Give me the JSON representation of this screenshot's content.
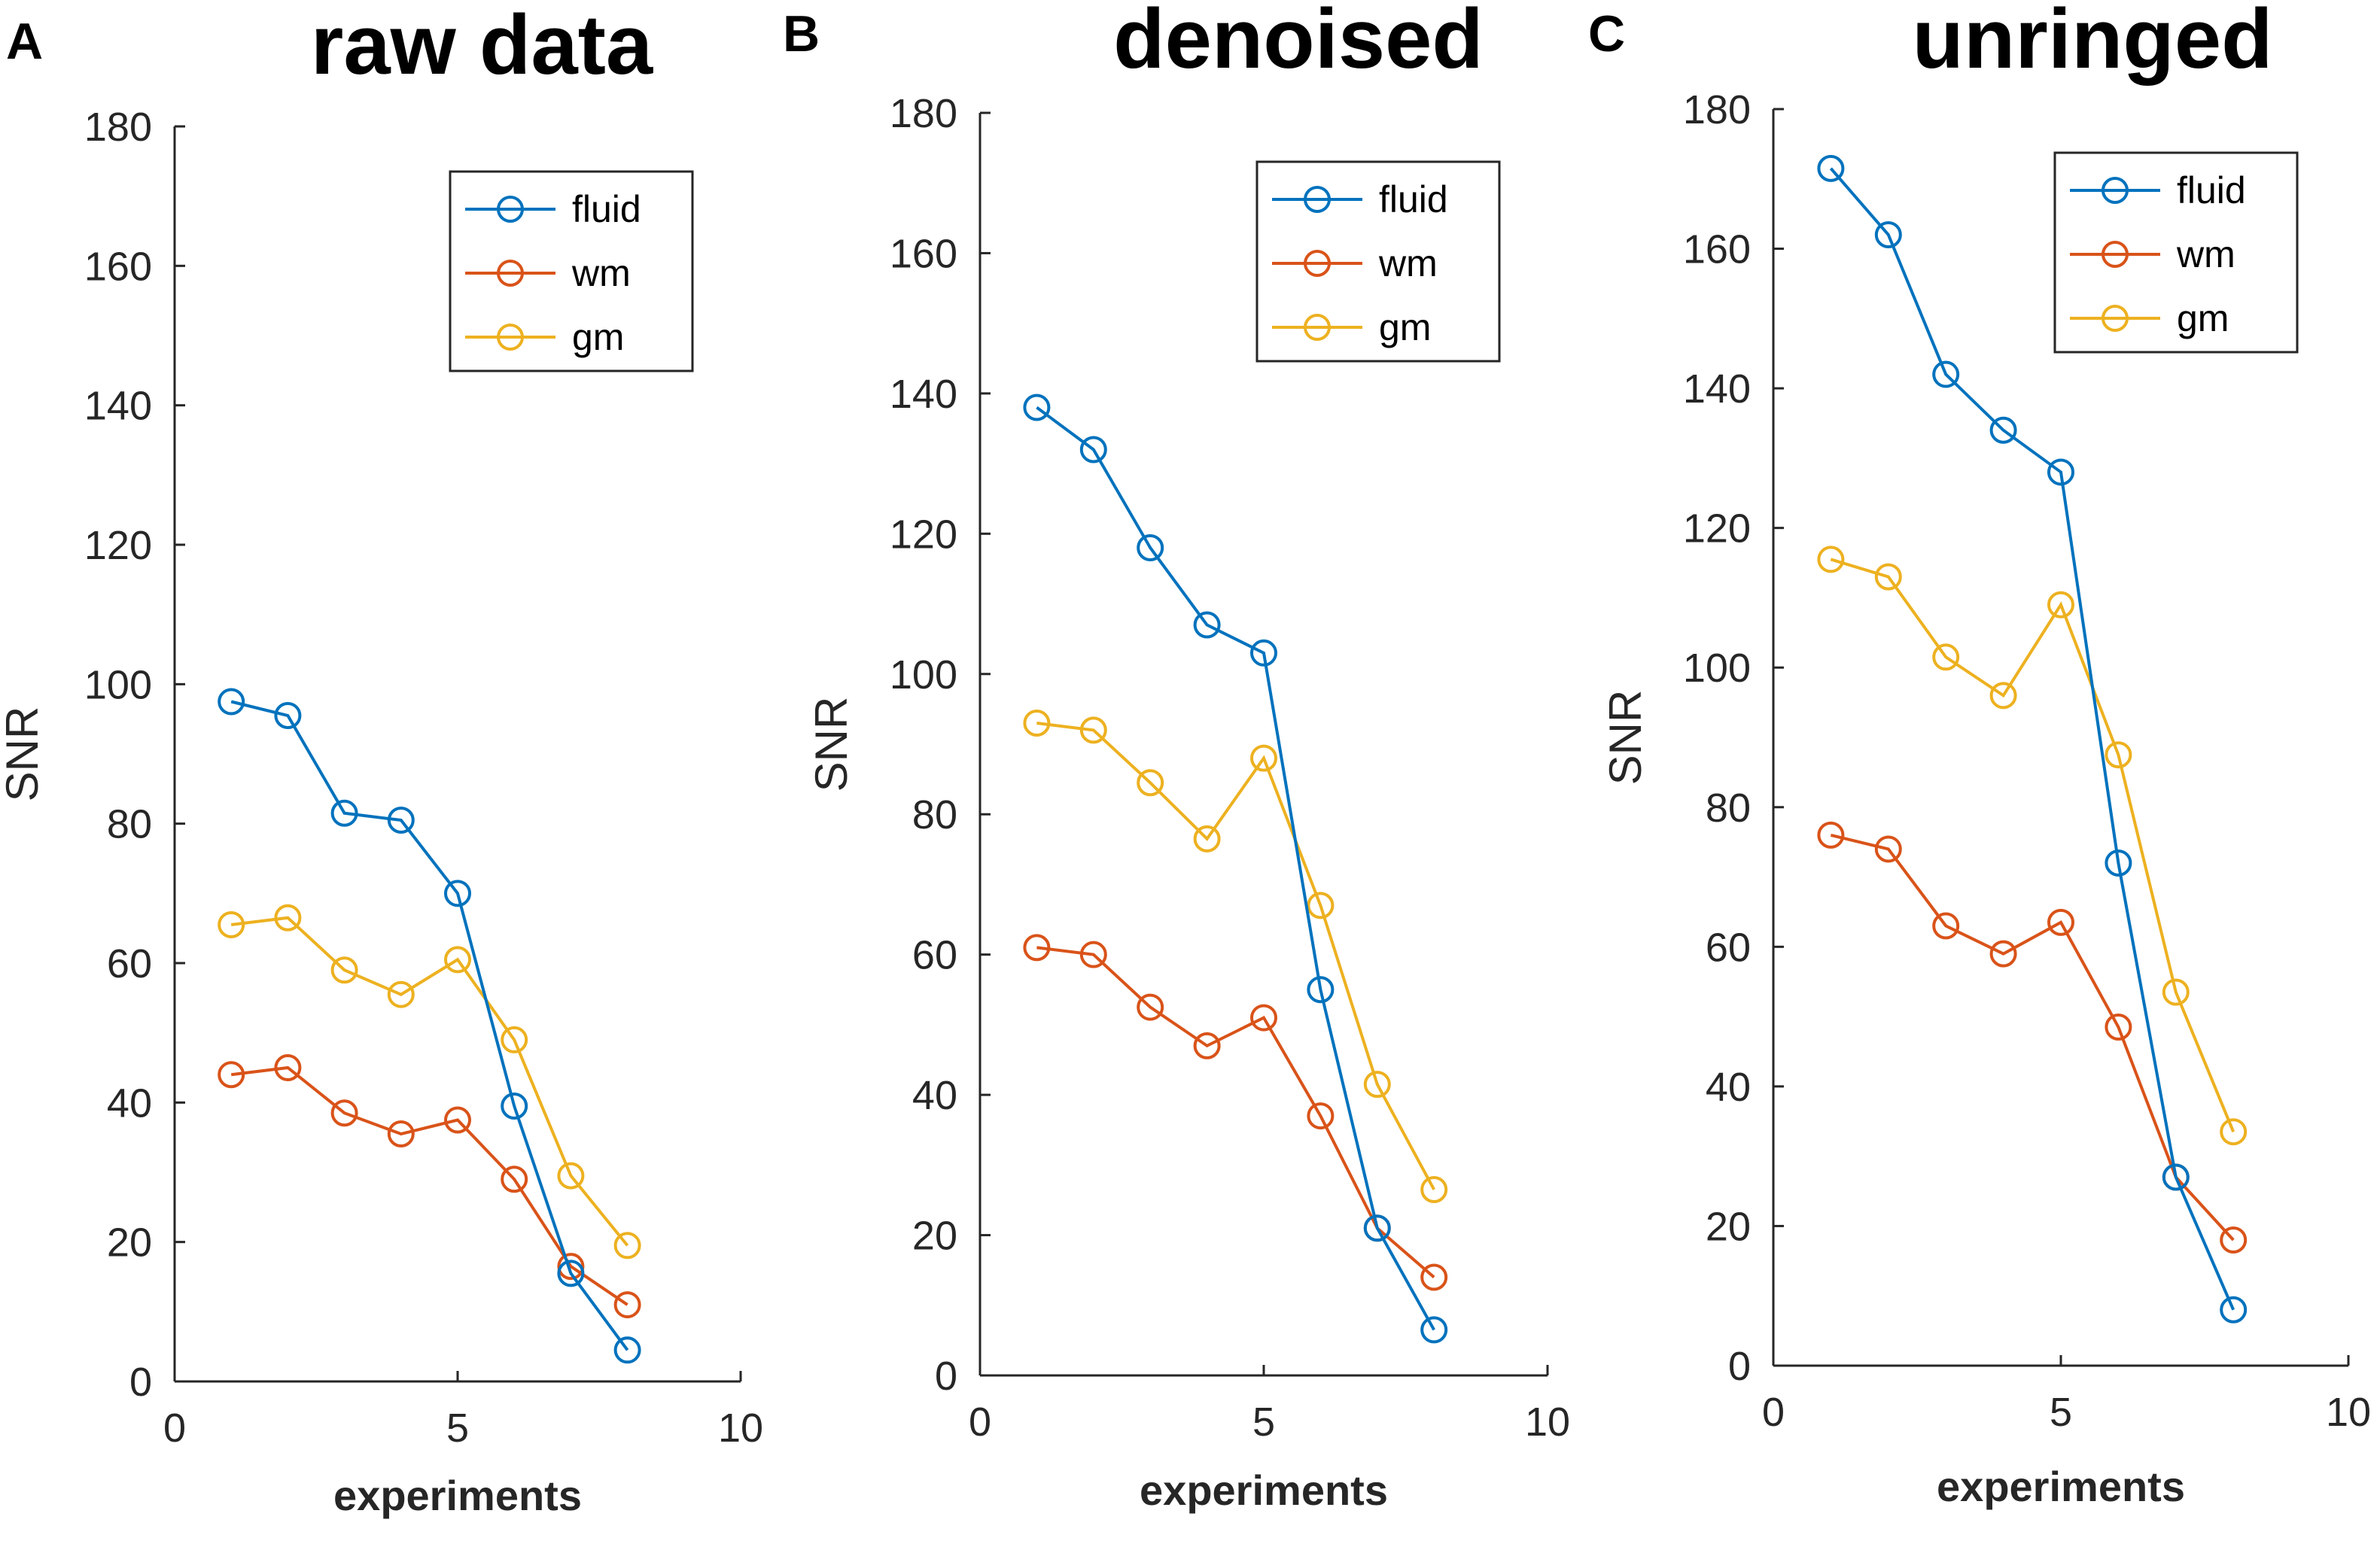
{
  "chart_data": [
    {
      "type": "line",
      "panel_label": "A",
      "title": "raw data",
      "xlabel": "experiments",
      "ylabel": "SNR",
      "xlim": [
        0,
        10
      ],
      "ylim": [
        0,
        180
      ],
      "xticks": [
        0,
        5,
        10
      ],
      "yticks": [
        0,
        20,
        40,
        60,
        80,
        100,
        120,
        140,
        160,
        180
      ],
      "legend_position": "top-right",
      "x": [
        1,
        2,
        3,
        4,
        5,
        6,
        7,
        8
      ],
      "series": [
        {
          "name": "fluid",
          "color": "#0072bd",
          "values": [
            97.5,
            95.5,
            81.5,
            80.5,
            70,
            39.5,
            15.5,
            4.5
          ]
        },
        {
          "name": "wm",
          "color": "#d95319",
          "values": [
            44,
            45,
            38.5,
            35.5,
            37.5,
            29,
            16.5,
            11
          ]
        },
        {
          "name": "gm",
          "color": "#edb120",
          "values": [
            65.5,
            66.5,
            59,
            55.5,
            60.5,
            49,
            29.5,
            19.5
          ]
        }
      ]
    },
    {
      "type": "line",
      "panel_label": "B",
      "title": "denoised",
      "xlabel": "experiments",
      "ylabel": "SNR",
      "xlim": [
        0,
        10
      ],
      "ylim": [
        0,
        180
      ],
      "xticks": [
        0,
        5,
        10
      ],
      "yticks": [
        0,
        20,
        40,
        60,
        80,
        100,
        120,
        140,
        160,
        180
      ],
      "legend_position": "top-right",
      "x": [
        1,
        2,
        3,
        4,
        5,
        6,
        7,
        8
      ],
      "series": [
        {
          "name": "fluid",
          "color": "#0072bd",
          "values": [
            138,
            132,
            118,
            107,
            103,
            55,
            21,
            6.5
          ]
        },
        {
          "name": "wm",
          "color": "#d95319",
          "values": [
            61,
            60,
            52.5,
            47,
            51,
            37,
            21,
            14
          ]
        },
        {
          "name": "gm",
          "color": "#edb120",
          "values": [
            93,
            92,
            84.5,
            76.5,
            88,
            67,
            41.5,
            26.5
          ]
        }
      ]
    },
    {
      "type": "line",
      "panel_label": "C",
      "title": "unringed",
      "xlabel": "experiments",
      "ylabel": "SNR",
      "xlim": [
        0,
        10
      ],
      "ylim": [
        0,
        180
      ],
      "xticks": [
        0,
        5,
        10
      ],
      "yticks": [
        0,
        20,
        40,
        60,
        80,
        100,
        120,
        140,
        160,
        180
      ],
      "legend_position": "top-right",
      "x": [
        1,
        2,
        3,
        4,
        5,
        6,
        7,
        8
      ],
      "series": [
        {
          "name": "fluid",
          "color": "#0072bd",
          "values": [
            171.5,
            162,
            142,
            134,
            128,
            72,
            27,
            8
          ]
        },
        {
          "name": "wm",
          "color": "#d95319",
          "values": [
            76,
            74,
            63,
            59,
            63.5,
            48.5,
            27,
            18
          ]
        },
        {
          "name": "gm",
          "color": "#edb120",
          "values": [
            115.5,
            113,
            101.5,
            96,
            109,
            87.5,
            53.5,
            33.5
          ]
        }
      ]
    }
  ]
}
